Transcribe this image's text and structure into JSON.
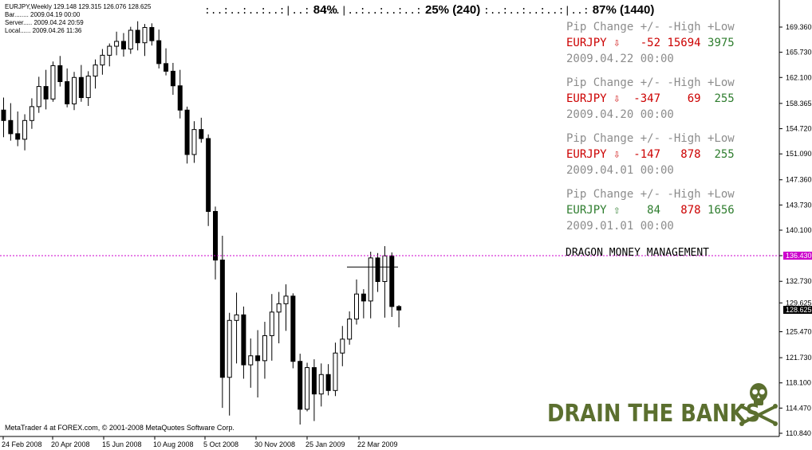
{
  "header": {
    "symbol_line": "EURJPY,Weekly  129.148 129.315 126.076 128.625",
    "bar_line": "Bar........ 2009.04.19 00:00",
    "server_line": "Server..... 2009.04.24 20:59",
    "local_line": "Local...... 2009.04.26 11:36"
  },
  "meters": [
    {
      "bars": ":..:..:..:..:|..:",
      "value": "84%"
    },
    {
      "bars": ":..|..:..:..:..:",
      "value": "25%  (240)"
    },
    {
      "bars": ":..:..:..:..:|..:",
      "value": "87%  (1440)"
    }
  ],
  "panels": [
    {
      "header": "Pip Change +/- -High +Low",
      "symbol": "EURJPY",
      "arrow": "⇩",
      "change": "-52",
      "high": "15694",
      "low": "3975",
      "date": "2009.04.22 00:00",
      "color": "#cc0000",
      "low_color": "#2e7d2e",
      "high_color": "#cc0000"
    },
    {
      "header": "Pip Change +/- -High +Low",
      "symbol": "EURJPY",
      "arrow": "⇩",
      "change": "-347",
      "high": "69",
      "low": "255",
      "date": "2009.04.20 00:00",
      "color": "#cc0000",
      "low_color": "#2e7d2e",
      "high_color": "#cc0000"
    },
    {
      "header": "Pip Change +/- -High +Low",
      "symbol": "EURJPY",
      "arrow": "⇩",
      "change": "-147",
      "high": "878",
      "low": "255",
      "date": "2009.04.01 00:00",
      "color": "#cc0000",
      "low_color": "#2e7d2e",
      "high_color": "#cc0000"
    },
    {
      "header": "Pip Change +/- -High +Low",
      "symbol": "EURJPY",
      "arrow": "⇧",
      "change": "84",
      "high": "878",
      "low": "1656",
      "date": "2009.01.01 00:00",
      "color": "#2e7d2e",
      "low_color": "#2e7d2e",
      "high_color": "#cc0000"
    }
  ],
  "dragon_label": "DRAGON MONEY MANAGEMENT",
  "footer": "MetaTrader 4 at FOREX.com, © 2001-2008 MetaQuotes Software Corp.",
  "drain_label": "DRAIN THE BANKS",
  "colors": {
    "hline": "#cc00cc",
    "price_tag": "#cc00cc",
    "drain": "#5b6f2f"
  },
  "chart_data": {
    "type": "candlestick",
    "symbol": "EURJPY",
    "timeframe": "Weekly",
    "ylim": [
      110.84,
      171.2
    ],
    "y_ticks": [
      "169.360",
      "165.730",
      "162.100",
      "158.365",
      "154.720",
      "151.090",
      "147.360",
      "143.730",
      "140.100",
      "136.430",
      "132.730",
      "129.625",
      "125.470",
      "121.730",
      "118.100",
      "114.470",
      "110.840"
    ],
    "x_labels": [
      "24 Feb 2008",
      "20 Apr 2008",
      "15 Jun 2008",
      "10 Aug 2008",
      "5 Oct 2008",
      "30 Nov 2008",
      "25 Jan 2009",
      "22 Mar 2009"
    ],
    "hline_price": 136.43,
    "hline_label": "136.430",
    "last_price_label": "128.625",
    "short_level": 134.8,
    "candles": [
      [
        157.4,
        159.2,
        153.5,
        155.9
      ],
      [
        155.9,
        158.4,
        153.0,
        154.0
      ],
      [
        154.0,
        157.2,
        152.2,
        153.2
      ],
      [
        153.2,
        156.8,
        151.6,
        155.9
      ],
      [
        155.9,
        159.1,
        154.7,
        157.9
      ],
      [
        157.9,
        162.2,
        157.0,
        160.8
      ],
      [
        160.8,
        163.2,
        157.5,
        159.0
      ],
      [
        159.0,
        164.4,
        158.6,
        163.8
      ],
      [
        163.8,
        165.2,
        160.8,
        161.5
      ],
      [
        161.5,
        163.4,
        157.8,
        158.3
      ],
      [
        158.3,
        162.9,
        157.4,
        162.1
      ],
      [
        162.1,
        163.9,
        158.6,
        159.2
      ],
      [
        159.2,
        163.0,
        158.0,
        162.3
      ],
      [
        162.3,
        164.7,
        160.5,
        163.9
      ],
      [
        163.9,
        166.2,
        162.5,
        165.3
      ],
      [
        165.3,
        167.0,
        163.7,
        166.6
      ],
      [
        166.6,
        168.7,
        165.3,
        167.3
      ],
      [
        167.3,
        168.5,
        165.1,
        166.2
      ],
      [
        166.2,
        169.4,
        165.5,
        168.9
      ],
      [
        168.9,
        170.2,
        166.0,
        167.1
      ],
      [
        167.1,
        169.8,
        165.2,
        169.3
      ],
      [
        169.3,
        169.9,
        166.7,
        167.4
      ],
      [
        167.4,
        169.0,
        163.4,
        164.1
      ],
      [
        164.1,
        166.3,
        162.4,
        163.0
      ],
      [
        163.0,
        164.2,
        159.6,
        160.9
      ],
      [
        160.9,
        163.2,
        156.2,
        157.4
      ],
      [
        157.4,
        157.9,
        149.7,
        151.0
      ],
      [
        151.0,
        155.8,
        149.8,
        154.6
      ],
      [
        154.6,
        156.3,
        152.7,
        153.3
      ],
      [
        153.3,
        153.9,
        140.7,
        142.8
      ],
      [
        142.8,
        143.5,
        133.0,
        135.8
      ],
      [
        135.8,
        139.3,
        114.5,
        118.9
      ],
      [
        118.9,
        128.2,
        113.4,
        127.1
      ],
      [
        127.1,
        131.1,
        120.9,
        127.9
      ],
      [
        127.9,
        129.1,
        118.7,
        120.7
      ],
      [
        120.7,
        124.5,
        117.4,
        122.0
      ],
      [
        122.0,
        125.7,
        116.0,
        121.3
      ],
      [
        121.3,
        126.9,
        118.7,
        124.9
      ],
      [
        124.9,
        130.9,
        121.3,
        128.3
      ],
      [
        128.3,
        131.2,
        123.8,
        129.5
      ],
      [
        129.5,
        132.3,
        125.6,
        130.6
      ],
      [
        130.6,
        131.0,
        120.2,
        121.2
      ],
      [
        121.2,
        122.3,
        112.1,
        114.3
      ],
      [
        114.3,
        121.0,
        114.0,
        120.3
      ],
      [
        120.3,
        121.5,
        112.6,
        116.5
      ],
      [
        116.5,
        120.9,
        114.7,
        119.3
      ],
      [
        119.3,
        120.8,
        116.3,
        117.0
      ],
      [
        117.0,
        123.9,
        116.2,
        122.4
      ],
      [
        122.4,
        126.3,
        120.5,
        124.4
      ],
      [
        124.4,
        128.4,
        123.6,
        127.3
      ],
      [
        127.3,
        133.0,
        126.5,
        130.9
      ],
      [
        130.9,
        131.6,
        127.4,
        129.9
      ],
      [
        129.9,
        137.0,
        127.4,
        136.1
      ],
      [
        136.1,
        136.8,
        131.2,
        132.7
      ],
      [
        132.7,
        137.8,
        127.5,
        136.4
      ],
      [
        136.4,
        136.9,
        127.6,
        129.1
      ],
      [
        129.1,
        129.3,
        126.1,
        128.6
      ]
    ]
  }
}
